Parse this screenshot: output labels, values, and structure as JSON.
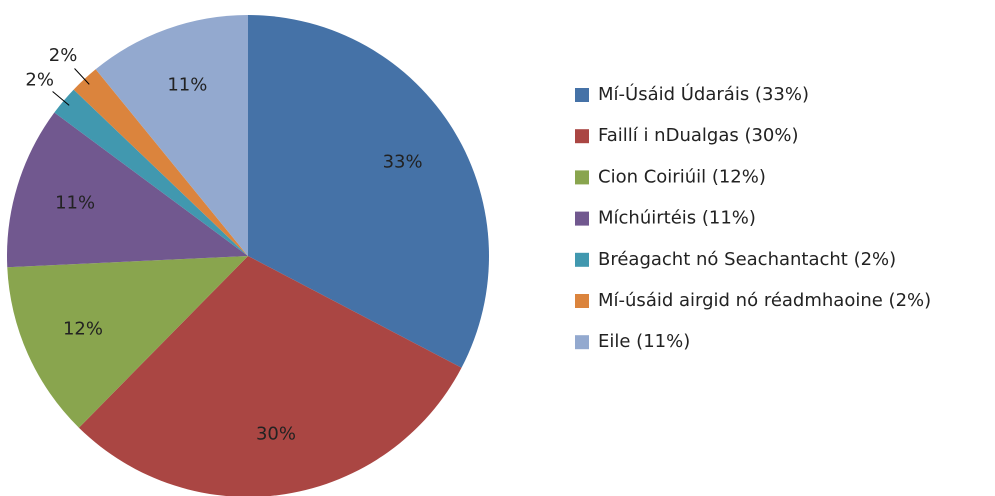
{
  "chart_data": {
    "type": "pie",
    "categories": [
      "Mí-Úsáid Údaráis (33%)",
      "Faillí i nDualgas (30%)",
      "Cion Coiriúil (12%)",
      "Míchúirtéis (11%)",
      "Bréagacht nó Seachantacht (2%)",
      "Mí-úsáid airgid nó réadmhaoine (2%)",
      "Eile (11%)"
    ],
    "values": [
      33,
      30,
      12,
      11,
      2,
      2,
      11
    ],
    "value_labels": [
      "33%",
      "30%",
      "12%",
      "11%",
      "2%",
      "2%",
      "11%"
    ],
    "colors": [
      "#4572a7",
      "#aa4643",
      "#89a54e",
      "#71588f",
      "#4198af",
      "#db843d",
      "#93a9cf"
    ],
    "legend": "right"
  }
}
